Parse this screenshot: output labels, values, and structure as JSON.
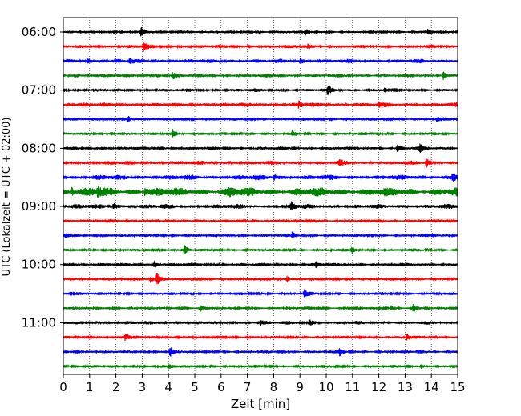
{
  "chart_data": {
    "type": "line",
    "title": "",
    "xlabel": "Zeit  [min]",
    "ylabel": "UTC (Lokalzeit = UTC + 02:00)",
    "xlim": [
      0,
      15
    ],
    "x_ticks": [
      0,
      1,
      2,
      3,
      4,
      5,
      6,
      7,
      8,
      9,
      10,
      11,
      12,
      13,
      14,
      15
    ],
    "x_tick_labels": [
      "0",
      "1",
      "2",
      "3",
      "4",
      "5",
      "6",
      "7",
      "8",
      "9",
      "10",
      "11",
      "12",
      "13",
      "14",
      "15"
    ],
    "y_tick_labels": [
      "06:00",
      "07:00",
      "08:00",
      "09:00",
      "10:00",
      "11:00"
    ],
    "grid": "vertical dotted",
    "trace_colors": [
      "#000000",
      "#ff0000",
      "#0000ff",
      "#008000"
    ],
    "traces": [
      {
        "start": "06:00",
        "color": "#000000",
        "amplitude": 0.25,
        "events": [
          [
            2.95,
            0.9
          ],
          [
            9.2,
            0.6
          ],
          [
            13.85,
            0.5
          ]
        ]
      },
      {
        "start": "06:15",
        "color": "#ff0000",
        "amplitude": 0.3,
        "events": [
          [
            3.05,
            0.9
          ],
          [
            9.3,
            0.5
          ]
        ]
      },
      {
        "start": "06:30",
        "color": "#0000ff",
        "amplitude": 0.35,
        "events": [
          [
            0.9,
            0.6
          ],
          [
            2.5,
            0.6
          ],
          [
            9.0,
            0.5
          ]
        ]
      },
      {
        "start": "06:45",
        "color": "#008000",
        "amplitude": 0.3,
        "events": [
          [
            4.15,
            0.7
          ],
          [
            14.45,
            0.9
          ]
        ]
      },
      {
        "start": "07:00",
        "color": "#000000",
        "amplitude": 0.3,
        "events": [
          [
            10.05,
            0.9
          ],
          [
            12.2,
            0.5
          ]
        ]
      },
      {
        "start": "07:15",
        "color": "#ff0000",
        "amplitude": 0.35,
        "events": [
          [
            8.95,
            0.7
          ],
          [
            12.0,
            0.5
          ]
        ]
      },
      {
        "start": "07:30",
        "color": "#0000ff",
        "amplitude": 0.25,
        "events": [
          [
            2.45,
            0.8
          ],
          [
            14.2,
            0.5
          ]
        ]
      },
      {
        "start": "07:45",
        "color": "#008000",
        "amplitude": 0.25,
        "events": [
          [
            4.15,
            0.9
          ],
          [
            8.7,
            0.5
          ]
        ]
      },
      {
        "start": "08:00",
        "color": "#000000",
        "amplitude": 0.3,
        "events": [
          [
            12.7,
            0.7
          ],
          [
            13.55,
            0.7
          ]
        ]
      },
      {
        "start": "08:15",
        "color": "#ff0000",
        "amplitude": 0.35,
        "events": [
          [
            13.8,
            0.9
          ],
          [
            10.5,
            0.5
          ]
        ]
      },
      {
        "start": "08:30",
        "color": "#0000ff",
        "amplitude": 0.45,
        "events": [
          [
            14.8,
            1.1
          ],
          [
            8.0,
            0.6
          ]
        ]
      },
      {
        "start": "08:45",
        "color": "#008000",
        "amplitude": 0.75,
        "events": [
          [
            0.3,
            0.9
          ],
          [
            1.3,
            0.9
          ],
          [
            3.1,
            0.8
          ],
          [
            6.3,
            0.8
          ]
        ]
      },
      {
        "start": "09:00",
        "color": "#000000",
        "amplitude": 0.4,
        "events": [
          [
            1.9,
            0.8
          ],
          [
            8.65,
            0.9
          ]
        ]
      },
      {
        "start": "09:15",
        "color": "#ff0000",
        "amplitude": 0.25,
        "events": [
          [
            5.0,
            0.4
          ]
        ]
      },
      {
        "start": "09:30",
        "color": "#0000ff",
        "amplitude": 0.25,
        "events": [
          [
            8.7,
            0.7
          ],
          [
            14.05,
            0.6
          ],
          [
            0.05,
            0.6
          ]
        ]
      },
      {
        "start": "09:45",
        "color": "#008000",
        "amplitude": 0.25,
        "events": [
          [
            4.6,
            0.9
          ],
          [
            10.95,
            0.7
          ]
        ]
      },
      {
        "start": "10:00",
        "color": "#000000",
        "amplitude": 0.3,
        "events": [
          [
            3.45,
            0.9
          ],
          [
            9.6,
            0.5
          ]
        ]
      },
      {
        "start": "10:15",
        "color": "#ff0000",
        "amplitude": 0.25,
        "events": [
          [
            3.3,
            0.7
          ],
          [
            3.55,
            1.2
          ],
          [
            8.5,
            0.7
          ]
        ]
      },
      {
        "start": "10:30",
        "color": "#0000ff",
        "amplitude": 0.25,
        "events": [
          [
            0.25,
            0.6
          ],
          [
            9.15,
            0.8
          ]
        ]
      },
      {
        "start": "10:45",
        "color": "#008000",
        "amplitude": 0.2,
        "events": [
          [
            5.2,
            0.7
          ],
          [
            12.45,
            0.6
          ],
          [
            13.3,
            0.9
          ]
        ]
      },
      {
        "start": "11:00",
        "color": "#000000",
        "amplitude": 0.3,
        "events": [
          [
            9.35,
            0.9
          ],
          [
            7.5,
            0.5
          ]
        ]
      },
      {
        "start": "11:15",
        "color": "#ff0000",
        "amplitude": 0.25,
        "events": [
          [
            2.35,
            0.9
          ],
          [
            13.05,
            0.7
          ]
        ]
      },
      {
        "start": "11:30",
        "color": "#0000ff",
        "amplitude": 0.25,
        "events": [
          [
            4.05,
            0.9
          ],
          [
            10.5,
            0.7
          ]
        ]
      },
      {
        "start": "11:45",
        "color": "#008000",
        "amplitude": 0.25,
        "events": [
          [
            4.0,
            0.6
          ],
          [
            13.6,
            0.5
          ]
        ]
      }
    ]
  }
}
